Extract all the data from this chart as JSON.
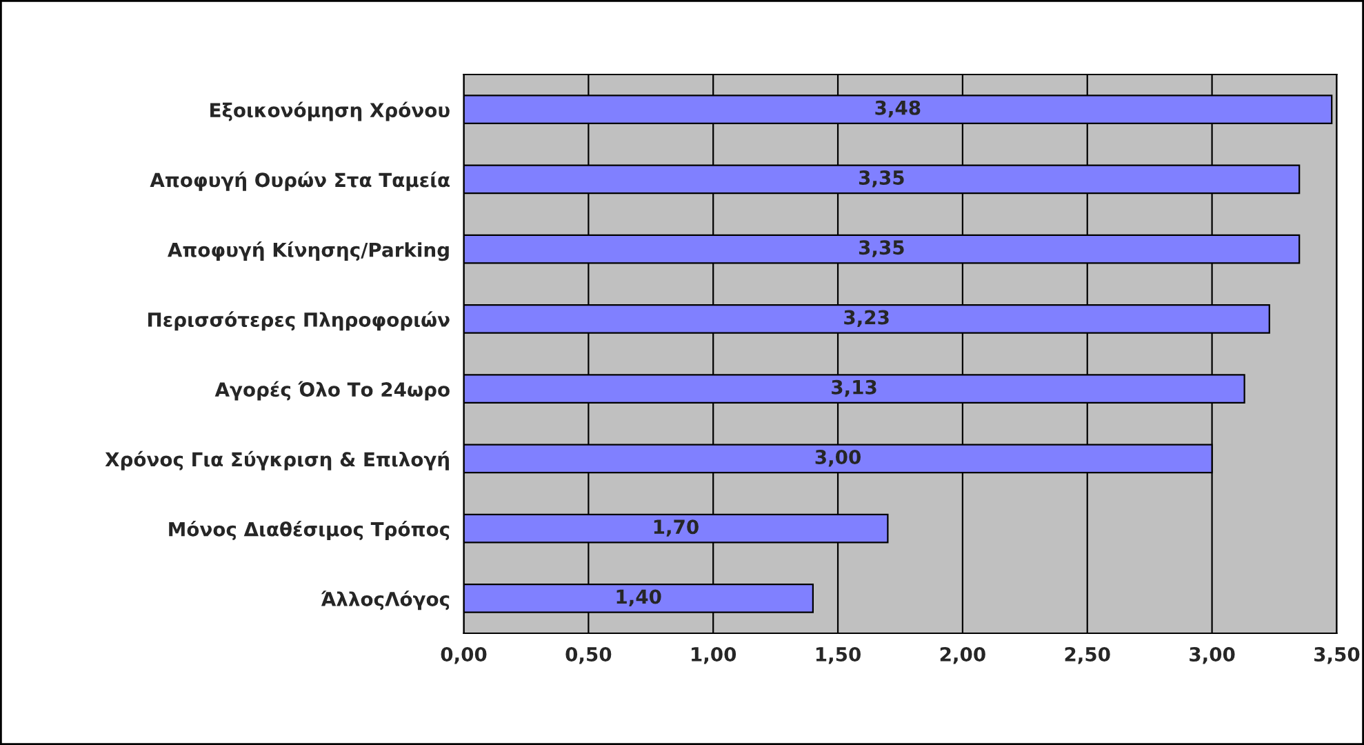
{
  "chart_data": {
    "type": "bar",
    "orientation": "horizontal",
    "categories": [
      "Εξοικονόμηση Χρόνου",
      "Αποφυγή Ουρών Στα Ταμεία",
      "Αποφυγή Κίνησης/Parking",
      "Περισσότερες Πληροφοριών",
      "Αγορές Όλο Το 24ωρο",
      "Χρόνος Για Σύγκριση & Επιλογή",
      "Μόνος Διαθέσιμος Τρόπος",
      "ΆλλοςΛόγος"
    ],
    "values": [
      3.48,
      3.35,
      3.35,
      3.23,
      3.13,
      3.0,
      1.7,
      1.4
    ],
    "value_labels": [
      "3,48",
      "3,35",
      "3,35",
      "3,23",
      "3,13",
      "3,00",
      "1,70",
      "1,40"
    ],
    "color": "#8080ff",
    "xlim": [
      0,
      3.5
    ],
    "xticks": [
      {
        "value": 0,
        "label": "0,00"
      },
      {
        "value": 0.5,
        "label": "0,50"
      },
      {
        "value": 1,
        "label": "1,00"
      },
      {
        "value": 1.5,
        "label": "1,50"
      },
      {
        "value": 2,
        "label": "2,00"
      },
      {
        "value": 2.5,
        "label": "2,50"
      },
      {
        "value": 3,
        "label": "3,00"
      },
      {
        "value": 3.5,
        "label": "3,50"
      }
    ],
    "grid": "x",
    "legend": false
  }
}
